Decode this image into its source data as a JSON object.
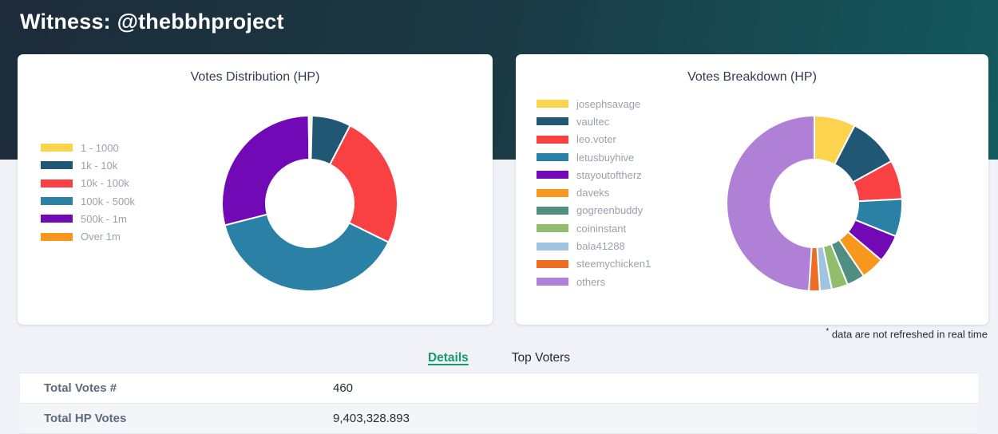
{
  "header": {
    "title": "Witness: @thebbhproject"
  },
  "theme": {
    "header_gradient_left": "#1D2B3A",
    "header_gradient_right": "#135A5E",
    "page_background": "#F0F2F7",
    "accent_green": "#159A68"
  },
  "chart_data": [
    {
      "type": "doughnut",
      "title": "Votes Distribution (HP)",
      "legend_position": "left",
      "labels": [
        "1 - 1000",
        "1k - 10k",
        "10k - 100k",
        "100k - 500k",
        "500k - 1m",
        "Over 1m"
      ],
      "values": [
        0.4,
        7.2,
        24.7,
        38.7,
        28.8,
        0.2
      ],
      "unit": "percent of total HP (estimated from arc angles)",
      "colors": [
        "#FCD34D",
        "#1F5775",
        "#F94144",
        "#2B80A5",
        "#7209B7",
        "#F8961E"
      ]
    },
    {
      "type": "doughnut",
      "title": "Votes Breakdown (HP)",
      "legend_position": "left",
      "labels": [
        "josephsavage",
        "vaultec",
        "leo.voter",
        "letusbuyhive",
        "stayoutoftherz",
        "daveks",
        "gogreenbuddy",
        "coininstant",
        "bala41288",
        "steemychicken1",
        "others"
      ],
      "values": [
        7.6,
        9.4,
        7.2,
        6.9,
        5.1,
        4.3,
        3.3,
        3.0,
        2.2,
        2.0,
        49.0
      ],
      "unit": "percent of total HP (estimated from arc angles)",
      "colors": [
        "#FCD34D",
        "#1F5775",
        "#F94144",
        "#2B80A5",
        "#7209B7",
        "#F8961E",
        "#4F8E80",
        "#90BE6D",
        "#A0C4DE",
        "#EF6C23",
        "#B07FD6"
      ]
    }
  ],
  "note": {
    "asterisk": "*",
    "text": " data are not refreshed in real time"
  },
  "tabs": [
    {
      "label": "Details",
      "active": true
    },
    {
      "label": "Top Voters",
      "active": false
    }
  ],
  "details_table": {
    "rows": [
      {
        "label": "Total Votes #",
        "value": "460"
      },
      {
        "label": "Total HP Votes",
        "value": "9,403,328.893"
      }
    ]
  }
}
